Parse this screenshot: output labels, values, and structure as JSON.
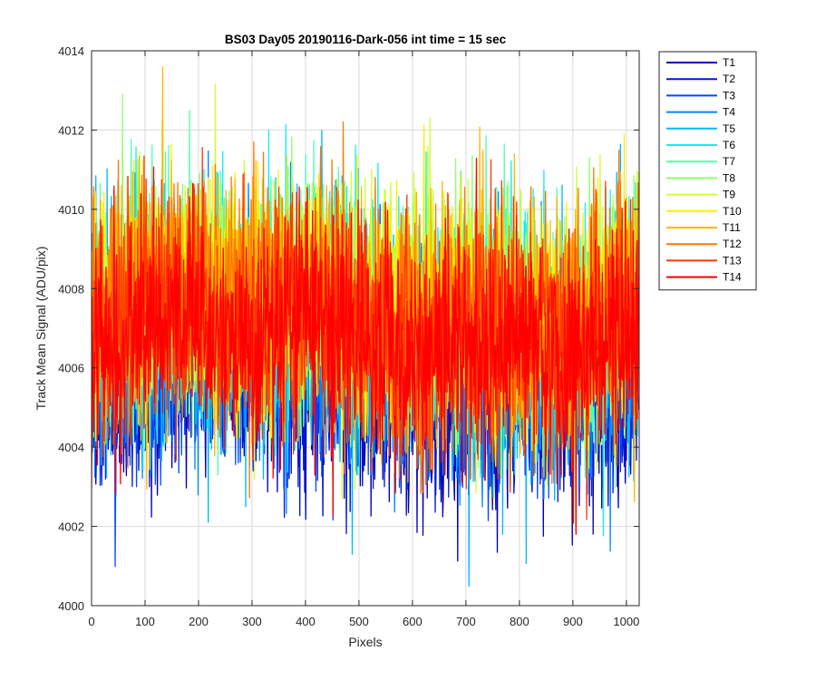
{
  "chart_data": {
    "type": "line",
    "title": "BS03 Day05 20190116-Dark-056 int time = 15 sec",
    "xlabel": "Pixels",
    "ylabel": "Track Mean Signal (ADU/pix)",
    "xlim": [
      0,
      1024
    ],
    "ylim": [
      4000,
      4014
    ],
    "x_ticks": [
      0,
      100,
      200,
      300,
      400,
      500,
      600,
      700,
      800,
      900,
      1000
    ],
    "y_ticks": [
      4000,
      4002,
      4004,
      4006,
      4008,
      4010,
      4012,
      4014
    ],
    "grid": true,
    "legend_position": "outside-top-right",
    "num_points": 1024,
    "series": [
      {
        "name": "T1",
        "color": "#0000b3",
        "mean": 4005.5,
        "amplitude": 1.3
      },
      {
        "name": "T2",
        "color": "#0018d6",
        "mean": 4005.7,
        "amplitude": 1.3
      },
      {
        "name": "T3",
        "color": "#0048ff",
        "mean": 4006.0,
        "amplitude": 1.3
      },
      {
        "name": "T4",
        "color": "#0088ff",
        "mean": 4006.3,
        "amplitude": 1.4
      },
      {
        "name": "T5",
        "color": "#00b8ff",
        "mean": 4006.8,
        "amplitude": 1.6
      },
      {
        "name": "T6",
        "color": "#10f0f0",
        "mean": 4007.2,
        "amplitude": 1.6
      },
      {
        "name": "T7",
        "color": "#50ffb0",
        "mean": 4007.4,
        "amplitude": 1.5
      },
      {
        "name": "T8",
        "color": "#90ff70",
        "mean": 4007.5,
        "amplitude": 1.5
      },
      {
        "name": "T9",
        "color": "#d0ff30",
        "mean": 4007.6,
        "amplitude": 1.5
      },
      {
        "name": "T10",
        "color": "#ffee00",
        "mean": 4007.6,
        "amplitude": 1.5
      },
      {
        "name": "T11",
        "color": "#ffb800",
        "mean": 4007.5,
        "amplitude": 1.5
      },
      {
        "name": "T12",
        "color": "#ff7800",
        "mean": 4007.4,
        "amplitude": 1.5
      },
      {
        "name": "T13",
        "color": "#ff3800",
        "mean": 4007.0,
        "amplitude": 1.5
      },
      {
        "name": "T14",
        "color": "#ff0000",
        "mean": 4006.8,
        "amplitude": 1.4
      }
    ]
  }
}
